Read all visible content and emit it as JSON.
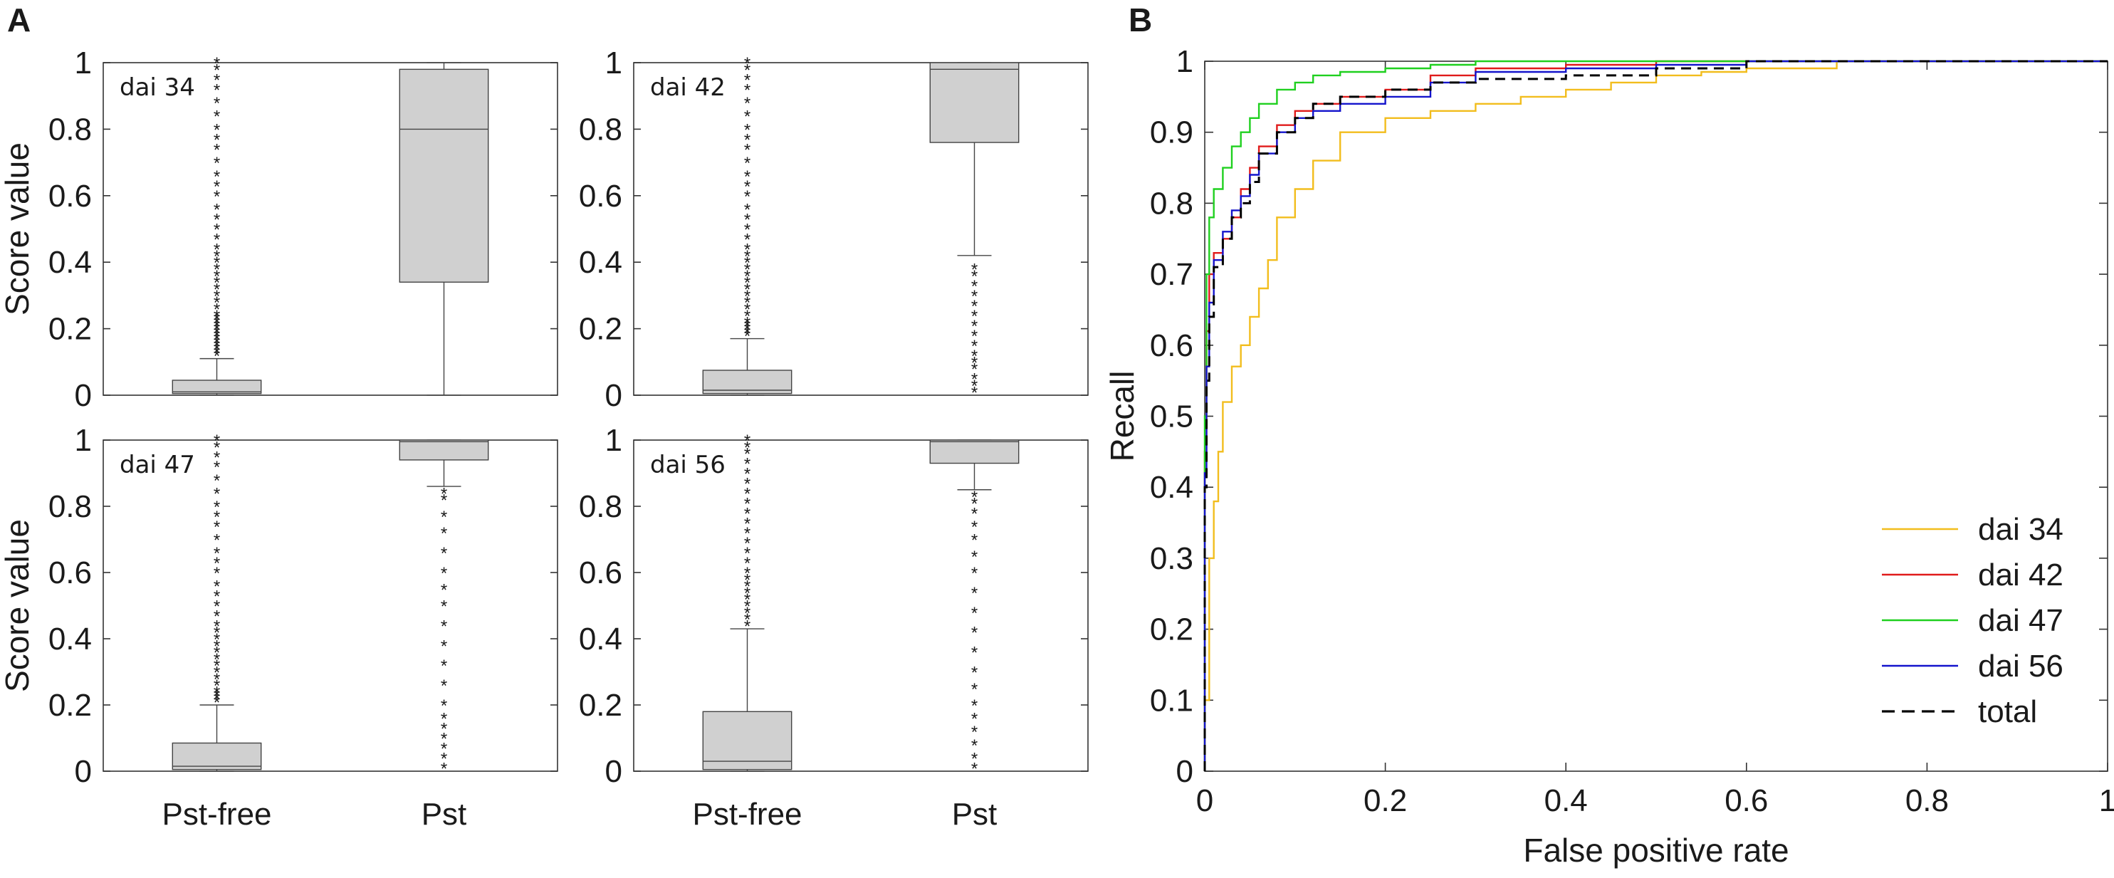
{
  "panel_letters": [
    "A",
    "B"
  ],
  "colors": {
    "box_fill": "#d0d0d0",
    "box_stroke": "#444444",
    "dai34": "#f2bd1d",
    "dai42": "#e01b1b",
    "dai47": "#1fd01f",
    "dai56": "#1414cc",
    "total": "#000000"
  },
  "chart_data": [
    {
      "type": "box",
      "panel": "A",
      "title": "dai 34",
      "categories": [
        "Pst-free",
        "Pst"
      ],
      "ylabel": "Score value",
      "ylim": [
        0,
        1
      ],
      "yticks": [
        "0",
        "0.2",
        "0.4",
        "0.6",
        "0.8",
        "1"
      ],
      "boxes": [
        {
          "name": "Pst-free",
          "q1": 0.005,
          "median": 0.01,
          "q3": 0.045,
          "whisker_low": 0.0,
          "whisker_high": 0.11,
          "outliers": [
            0.12,
            0.13,
            0.14,
            0.15,
            0.16,
            0.17,
            0.18,
            0.19,
            0.2,
            0.21,
            0.22,
            0.23,
            0.24,
            0.26,
            0.28,
            0.3,
            0.32,
            0.34,
            0.36,
            0.38,
            0.4,
            0.42,
            0.44,
            0.47,
            0.5,
            0.53,
            0.56,
            0.6,
            0.63,
            0.66,
            0.7,
            0.74,
            0.77,
            0.8,
            0.84,
            0.88,
            0.92,
            0.95,
            0.98,
            1.0
          ]
        },
        {
          "name": "Pst",
          "q1": 0.34,
          "median": 0.8,
          "q3": 0.98,
          "whisker_low": 0.0,
          "whisker_high": 1.0,
          "outliers": []
        }
      ]
    },
    {
      "type": "box",
      "panel": "A",
      "title": "dai 42",
      "categories": [
        "Pst-free",
        "Pst"
      ],
      "ylabel": "",
      "ylim": [
        0,
        1
      ],
      "yticks": [
        "0",
        "0.2",
        "0.4",
        "0.6",
        "0.8",
        "1"
      ],
      "boxes": [
        {
          "name": "Pst-free",
          "q1": 0.005,
          "median": 0.015,
          "q3": 0.075,
          "whisker_low": 0.0,
          "whisker_high": 0.17,
          "outliers": [
            0.18,
            0.19,
            0.2,
            0.21,
            0.22,
            0.24,
            0.26,
            0.28,
            0.3,
            0.32,
            0.34,
            0.36,
            0.38,
            0.4,
            0.42,
            0.44,
            0.47,
            0.5,
            0.53,
            0.56,
            0.6,
            0.63,
            0.66,
            0.7,
            0.74,
            0.77,
            0.8,
            0.84,
            0.88,
            0.92,
            0.95,
            0.98,
            1.0
          ]
        },
        {
          "name": "Pst",
          "q1": 0.76,
          "median": 0.98,
          "q3": 1.0,
          "whisker_low": 0.42,
          "whisker_high": 1.0,
          "outliers": [
            0.01,
            0.03,
            0.05,
            0.08,
            0.1,
            0.12,
            0.15,
            0.18,
            0.21,
            0.24,
            0.27,
            0.3,
            0.33,
            0.36,
            0.38
          ]
        }
      ]
    },
    {
      "type": "box",
      "panel": "A",
      "title": "dai 47",
      "categories": [
        "Pst-free",
        "Pst"
      ],
      "ylabel": "Score value",
      "ylim": [
        0,
        1
      ],
      "yticks": [
        "0",
        "0.2",
        "0.4",
        "0.6",
        "0.8",
        "1"
      ],
      "boxes": [
        {
          "name": "Pst-free",
          "q1": 0.005,
          "median": 0.015,
          "q3": 0.085,
          "whisker_low": 0.0,
          "whisker_high": 0.2,
          "outliers": [
            0.21,
            0.22,
            0.23,
            0.24,
            0.26,
            0.28,
            0.3,
            0.32,
            0.34,
            0.36,
            0.38,
            0.4,
            0.42,
            0.44,
            0.47,
            0.5,
            0.53,
            0.56,
            0.6,
            0.63,
            0.66,
            0.7,
            0.74,
            0.77,
            0.8,
            0.84,
            0.88,
            0.92,
            0.95,
            0.98,
            1.0
          ]
        },
        {
          "name": "Pst",
          "q1": 0.94,
          "median": 0.995,
          "q3": 1.0,
          "whisker_low": 0.86,
          "whisker_high": 1.0,
          "outliers": [
            0.01,
            0.04,
            0.07,
            0.1,
            0.13,
            0.16,
            0.2,
            0.26,
            0.32,
            0.38,
            0.44,
            0.5,
            0.55,
            0.6,
            0.66,
            0.72,
            0.77,
            0.82,
            0.84
          ]
        }
      ]
    },
    {
      "type": "box",
      "panel": "A",
      "title": "dai 56",
      "categories": [
        "Pst-free",
        "Pst"
      ],
      "ylabel": "",
      "ylim": [
        0,
        1
      ],
      "yticks": [
        "0",
        "0.2",
        "0.4",
        "0.6",
        "0.8",
        "1"
      ],
      "boxes": [
        {
          "name": "Pst-free",
          "q1": 0.005,
          "median": 0.03,
          "q3": 0.18,
          "whisker_low": 0.0,
          "whisker_high": 0.43,
          "outliers": [
            0.44,
            0.46,
            0.48,
            0.5,
            0.52,
            0.54,
            0.56,
            0.58,
            0.6,
            0.63,
            0.66,
            0.69,
            0.72,
            0.75,
            0.78,
            0.81,
            0.84,
            0.87,
            0.9,
            0.93,
            0.96,
            0.98,
            1.0
          ]
        },
        {
          "name": "Pst",
          "q1": 0.93,
          "median": 0.995,
          "q3": 1.0,
          "whisker_low": 0.85,
          "whisker_high": 1.0,
          "outliers": [
            0.01,
            0.04,
            0.08,
            0.12,
            0.16,
            0.2,
            0.25,
            0.3,
            0.36,
            0.42,
            0.48,
            0.54,
            0.6,
            0.65,
            0.7,
            0.74,
            0.78,
            0.81,
            0.83
          ]
        }
      ]
    },
    {
      "type": "line",
      "panel": "B",
      "xlabel": "False positive rate",
      "ylabel": "Recall",
      "xlim": [
        0,
        1
      ],
      "ylim": [
        0,
        1
      ],
      "xticks": [
        "0",
        "0.2",
        "0.4",
        "0.6",
        "0.8",
        "1"
      ],
      "yticks": [
        "0",
        "0.1",
        "0.2",
        "0.3",
        "0.4",
        "0.5",
        "0.6",
        "0.7",
        "0.8",
        "0.9",
        "1"
      ],
      "legend": {
        "position": "bottom-right",
        "entries": [
          "dai 34",
          "dai 42",
          "dai 47",
          "dai 56",
          "total"
        ]
      },
      "series": [
        {
          "name": "dai 34",
          "color": "#f2bd1d",
          "dash": false,
          "x": [
            0,
            0.005,
            0.01,
            0.015,
            0.02,
            0.03,
            0.04,
            0.05,
            0.06,
            0.07,
            0.08,
            0.1,
            0.12,
            0.15,
            0.2,
            0.25,
            0.3,
            0.35,
            0.4,
            0.45,
            0.5,
            0.55,
            0.6,
            0.7,
            0.8,
            0.9,
            1.0
          ],
          "y": [
            0,
            0.1,
            0.3,
            0.38,
            0.45,
            0.52,
            0.57,
            0.6,
            0.64,
            0.68,
            0.72,
            0.78,
            0.82,
            0.86,
            0.9,
            0.92,
            0.93,
            0.94,
            0.95,
            0.96,
            0.97,
            0.98,
            0.985,
            0.99,
            1.0,
            1.0,
            1.0
          ]
        },
        {
          "name": "dai 42",
          "color": "#e01b1b",
          "dash": false,
          "x": [
            0,
            0.002,
            0.005,
            0.01,
            0.02,
            0.03,
            0.04,
            0.05,
            0.06,
            0.08,
            0.1,
            0.12,
            0.15,
            0.2,
            0.25,
            0.3,
            0.4,
            0.5,
            0.6,
            0.8,
            1.0
          ],
          "y": [
            0,
            0.45,
            0.62,
            0.7,
            0.73,
            0.75,
            0.78,
            0.82,
            0.85,
            0.88,
            0.91,
            0.93,
            0.94,
            0.95,
            0.96,
            0.98,
            0.99,
            0.995,
            1.0,
            1.0,
            1.0
          ]
        },
        {
          "name": "dai 47",
          "color": "#1fd01f",
          "dash": false,
          "x": [
            0,
            0.002,
            0.005,
            0.01,
            0.02,
            0.03,
            0.04,
            0.05,
            0.06,
            0.08,
            0.1,
            0.12,
            0.15,
            0.2,
            0.25,
            0.3,
            0.4,
            0.5,
            0.6,
            0.8,
            1.0
          ],
          "y": [
            0,
            0.5,
            0.7,
            0.78,
            0.82,
            0.85,
            0.88,
            0.9,
            0.92,
            0.94,
            0.96,
            0.97,
            0.98,
            0.985,
            0.99,
            0.995,
            1.0,
            1.0,
            1.0,
            1.0,
            1.0
          ]
        },
        {
          "name": "dai 56",
          "color": "#1414cc",
          "dash": false,
          "x": [
            0,
            0.002,
            0.005,
            0.01,
            0.02,
            0.03,
            0.04,
            0.05,
            0.06,
            0.08,
            0.1,
            0.12,
            0.15,
            0.2,
            0.25,
            0.3,
            0.4,
            0.5,
            0.6,
            0.8,
            1.0
          ],
          "y": [
            0,
            0.42,
            0.57,
            0.66,
            0.72,
            0.76,
            0.79,
            0.81,
            0.84,
            0.87,
            0.9,
            0.92,
            0.93,
            0.94,
            0.95,
            0.97,
            0.985,
            0.99,
            0.995,
            1.0,
            1.0
          ]
        },
        {
          "name": "total",
          "color": "#000000",
          "dash": true,
          "x": [
            0,
            0.002,
            0.005,
            0.01,
            0.02,
            0.03,
            0.04,
            0.05,
            0.06,
            0.08,
            0.1,
            0.12,
            0.15,
            0.2,
            0.25,
            0.3,
            0.4,
            0.5,
            0.6,
            0.8,
            1.0
          ],
          "y": [
            0,
            0.4,
            0.55,
            0.64,
            0.71,
            0.75,
            0.78,
            0.8,
            0.83,
            0.87,
            0.9,
            0.92,
            0.94,
            0.95,
            0.96,
            0.97,
            0.975,
            0.98,
            0.99,
            1.0,
            1.0
          ]
        }
      ]
    }
  ]
}
